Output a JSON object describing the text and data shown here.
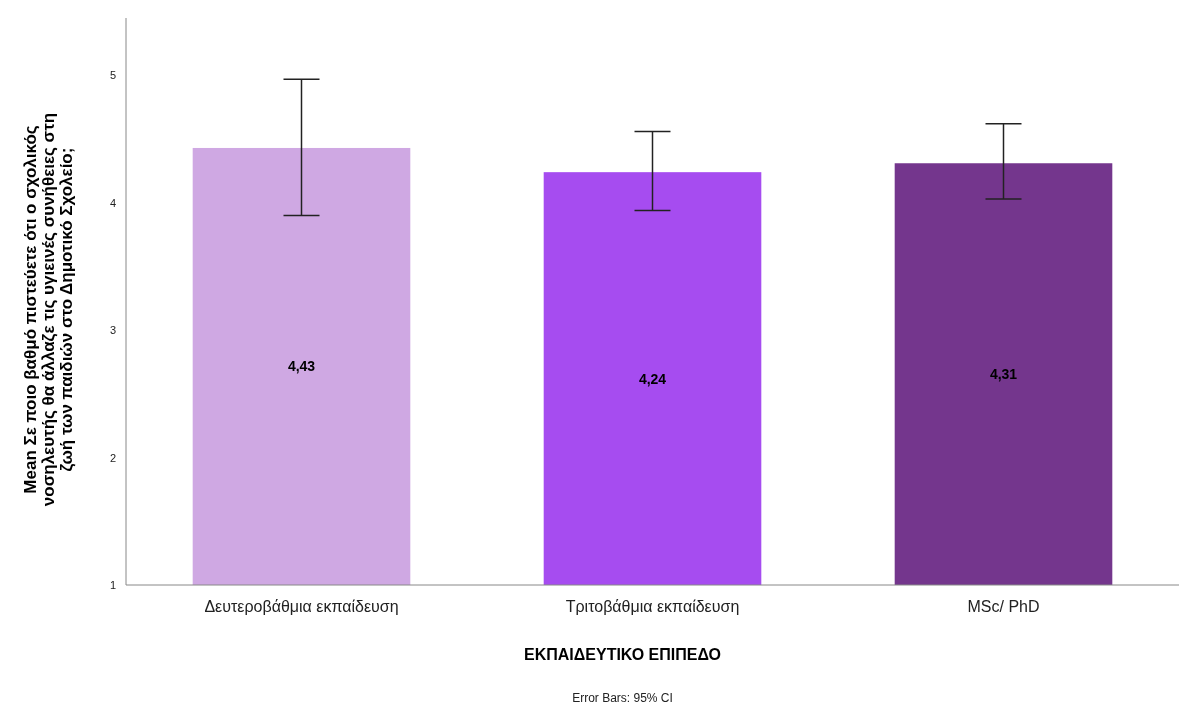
{
  "chart_data": {
    "type": "bar",
    "xlabel": "ΕΚΠΑΙΔΕΥΤΙΚΟ ΕΠΙΠΕΔΟ",
    "ylabel": "Mean Σε ποιο βαθμό πιστεύετε ότι ο σχολικός\nνοσηλευτής θα άλλαζε τις υγιεινές συνήθειες στη\nζωή των παιδιών στο Δημοτικό Σχολείο;",
    "categories": [
      "Δευτεροβάθμια εκπαίδευση",
      "Τριτοβάθμια εκπαίδευση",
      "MSc/ PhD"
    ],
    "values": [
      4.43,
      4.24,
      4.31
    ],
    "colors": [
      "#cfa8e3",
      "#a64cf0",
      "#74368d"
    ],
    "errors": [
      [
        3.9,
        4.97
      ],
      [
        3.94,
        4.56
      ],
      [
        4.03,
        4.62
      ]
    ],
    "value_labels": [
      "4,43",
      "4,24",
      "4,31"
    ],
    "ylim": [
      1,
      5.45
    ],
    "yticks": [
      1,
      2,
      3,
      4,
      5
    ],
    "grid": false,
    "annotations": [
      "Error Bars: 95% CI"
    ]
  }
}
